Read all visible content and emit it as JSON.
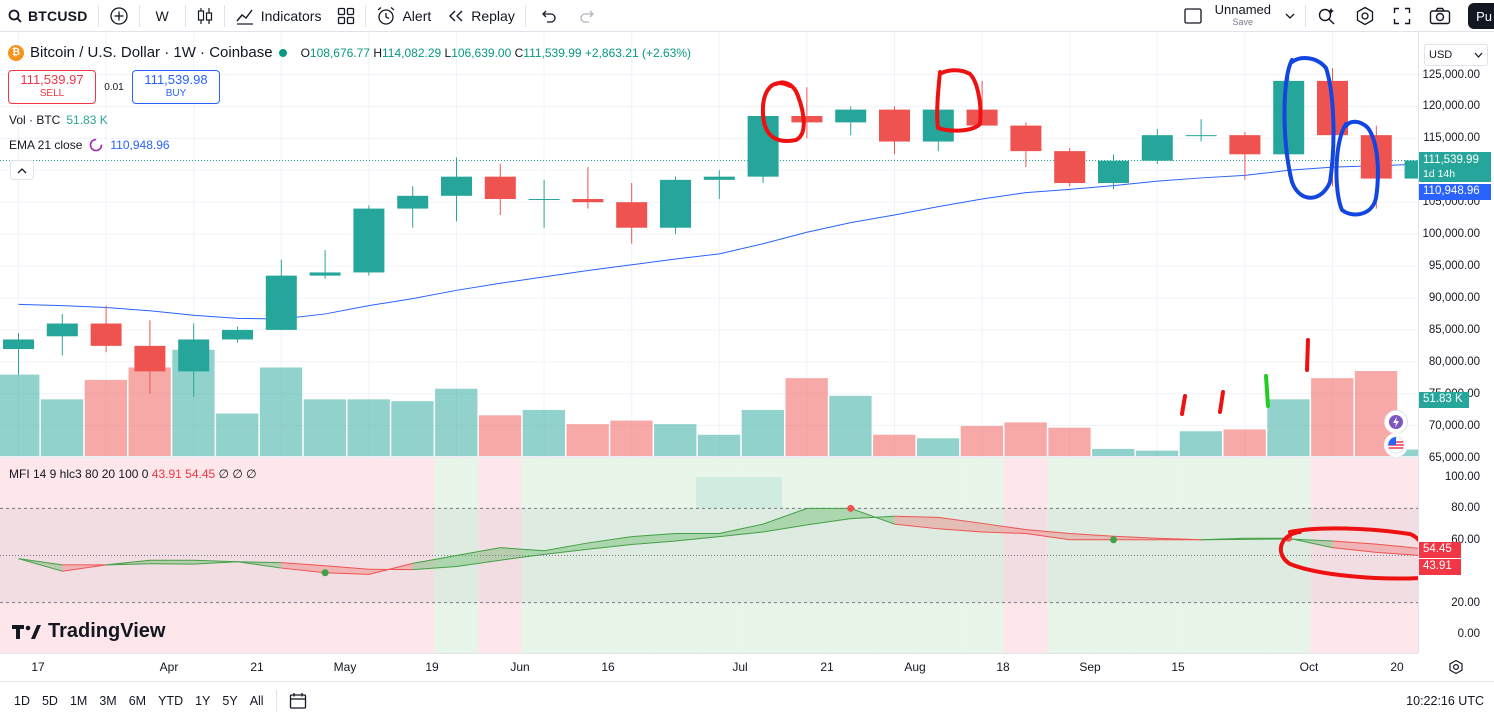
{
  "toolbar": {
    "symbol": "BTCUSD",
    "interval": "W",
    "indicators": "Indicators",
    "alert": "Alert",
    "replay": "Replay",
    "layout_name": "Unnamed",
    "layout_save": "Save",
    "publish": "Pu"
  },
  "legend": {
    "title": "Bitcoin / U.S. Dollar · 1W · Coinbase",
    "open_label": "O",
    "open": "108,676.77",
    "high_label": "H",
    "high": "114,082.29",
    "low_label": "L",
    "low": "106,639.00",
    "close_label": "C",
    "close": "111,539.99",
    "change": "+2,863.21 (+2.63%)"
  },
  "trade": {
    "sell_price": "111,539.97",
    "sell_label": "SELL",
    "spread": "0.01",
    "buy_price": "111,539.98",
    "buy_label": "BUY"
  },
  "volume_legend": {
    "label": "Vol · BTC",
    "value": "51.83 K"
  },
  "ema_legend": {
    "label": "EMA 21 close",
    "value": "110,948.96"
  },
  "mfi_legend": {
    "label": "MFI 14 9 hlc3 80 20 100 0",
    "v1": "43.91",
    "v2": "54.45",
    "rest": "∅ ∅ ∅"
  },
  "price_axis": {
    "currency": "USD",
    "labels": [
      "125,000.00",
      "120,000.00",
      "115,000.00",
      "105,000.00",
      "100,000.00",
      "95,000.00",
      "90,000.00",
      "85,000.00",
      "80,000.00",
      "75,000.00",
      "70,000.00",
      "65,000.00"
    ],
    "mfi_labels": [
      "100.00",
      "80.00",
      "60.00",
      "20.00",
      "0.00"
    ],
    "price_tag": "111,539.99",
    "countdown": "1d 14h",
    "ema_tag": "110,948.96",
    "vol_tag": "51.83 K",
    "mfi_tag_1": "54.45",
    "mfi_tag_2": "43.91"
  },
  "time_axis": [
    "17",
    "Apr",
    "21",
    "May",
    "19",
    "Jun",
    "16",
    "Jul",
    "21",
    "Aug",
    "18",
    "Sep",
    "15",
    "Oct",
    "20"
  ],
  "bottom": {
    "ranges": [
      "1D",
      "5D",
      "1M",
      "3M",
      "6M",
      "YTD",
      "1Y",
      "5Y",
      "All"
    ],
    "clock": "10:22:16 UTC"
  },
  "brand": "TradingView",
  "colors": {
    "up": "#26a69a",
    "down": "#ef5350",
    "ema": "#2962ff"
  },
  "chart_data": {
    "type": "candlestick",
    "interval": "1W",
    "series": [
      {
        "name": "Bitcoin / U.S. Dollar",
        "ohlc": [
          [
            82000,
            84500,
            78000,
            83500
          ],
          [
            84000,
            87500,
            81000,
            86000
          ],
          [
            86000,
            88800,
            81500,
            82500
          ],
          [
            82500,
            86500,
            75000,
            78500
          ],
          [
            78500,
            86000,
            74500,
            83500
          ],
          [
            83500,
            85500,
            83000,
            85000
          ],
          [
            85000,
            96000,
            85000,
            93500
          ],
          [
            93500,
            97500,
            93000,
            94000
          ],
          [
            94000,
            104500,
            93500,
            104000
          ],
          [
            104000,
            107500,
            101000,
            106000
          ],
          [
            106000,
            112000,
            102000,
            109000
          ],
          [
            109000,
            111000,
            103000,
            105500
          ],
          [
            105500,
            108500,
            101000,
            105500
          ],
          [
            105500,
            110500,
            104000,
            105000
          ],
          [
            105000,
            108000,
            98500,
            101000
          ],
          [
            101000,
            109000,
            100000,
            108500
          ],
          [
            108500,
            110000,
            105500,
            109000
          ],
          [
            109000,
            119000,
            108000,
            118500
          ],
          [
            118500,
            123000,
            115000,
            117500
          ],
          [
            117500,
            120000,
            115500,
            119500
          ],
          [
            119500,
            120000,
            112500,
            114500
          ],
          [
            114500,
            119500,
            113000,
            119500
          ],
          [
            119500,
            124000,
            117000,
            117000
          ],
          [
            117000,
            117500,
            110500,
            113000
          ],
          [
            113000,
            113500,
            107500,
            108000
          ],
          [
            108000,
            112500,
            107000,
            111500
          ],
          [
            111500,
            116500,
            111000,
            115500
          ],
          [
            115500,
            118000,
            114500,
            115500
          ],
          [
            115500,
            116000,
            108500,
            112500
          ],
          [
            112500,
            125500,
            109000,
            124000
          ],
          [
            124000,
            126000,
            107500,
            115500
          ],
          [
            115500,
            117000,
            104000,
            108700
          ],
          [
            108700,
            114082,
            106639,
            111540
          ]
        ]
      },
      {
        "name": "EMA 21 close",
        "values": [
          89000,
          88800,
          88500,
          88000,
          87300,
          86800,
          86700,
          87500,
          88800,
          89900,
          91200,
          92300,
          93300,
          94300,
          95200,
          96100,
          96900,
          98500,
          100300,
          101800,
          103000,
          104300,
          105500,
          106500,
          107000,
          107600,
          108300,
          108800,
          109200,
          110000,
          110500,
          110700,
          110949
        ]
      },
      {
        "name": "Vol · BTC",
        "values": [
          73000,
          66000,
          71500,
          75000,
          80000,
          62000,
          75000,
          66000,
          66000,
          65500,
          69000,
          61500,
          63000,
          59000,
          60000,
          59000,
          56000,
          63000,
          72000,
          67000,
          56000,
          55000,
          58500,
          59500,
          58000,
          52000,
          51500,
          57000,
          57500,
          66000,
          72000,
          74000,
          51830
        ]
      },
      {
        "name": "MFI 14 9 hlc3 80 20 100 0",
        "values": [
          48,
          40,
          44,
          47,
          47,
          46,
          42,
          39,
          38,
          45,
          50,
          55,
          53,
          58,
          62,
          64,
          64,
          70,
          80,
          80,
          70,
          67,
          65,
          64,
          60,
          60,
          60,
          60,
          61,
          61,
          55,
          52,
          50
        ]
      }
    ],
    "price_range": [
      65000,
      127000
    ],
    "mfi_levels": [
      80,
      20
    ]
  }
}
